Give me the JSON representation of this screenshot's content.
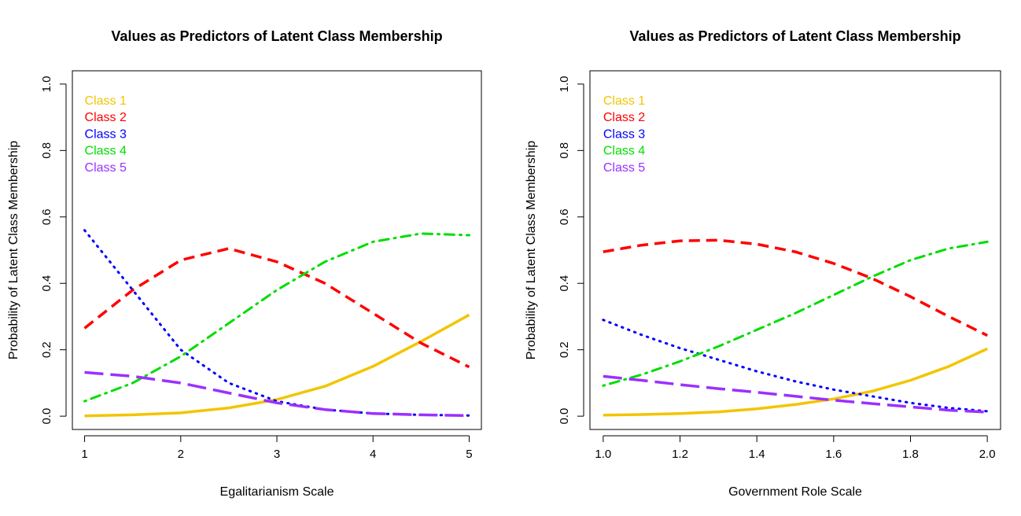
{
  "colors": {
    "class1": "#F2C500",
    "class2": "#FF0000",
    "class3": "#0000FF",
    "class4": "#00DD00",
    "class5": "#9B30FF"
  },
  "chart_data": [
    {
      "type": "line",
      "title": "Values as Predictors of Latent Class Membership",
      "xlabel": "Egalitarianism Scale",
      "ylabel": "Probability of Latent Class Membership",
      "xlim": [
        1,
        5
      ],
      "ylim": [
        0,
        1
      ],
      "xticks": [
        "1",
        "2",
        "3",
        "4",
        "5"
      ],
      "yticks": [
        "0.0",
        "0.2",
        "0.4",
        "0.6",
        "0.8",
        "1.0"
      ],
      "grid": false,
      "legend_position": "top-left",
      "x": [
        1.0,
        1.5,
        2.0,
        2.5,
        3.0,
        3.5,
        4.0,
        4.5,
        5.0
      ],
      "series": [
        {
          "name": "Class 1",
          "color": "#F2C500",
          "style": "solid",
          "values": [
            0.001,
            0.004,
            0.01,
            0.025,
            0.05,
            0.09,
            0.15,
            0.225,
            0.305
          ]
        },
        {
          "name": "Class 2",
          "color": "#FF0000",
          "style": "dashed",
          "values": [
            0.265,
            0.38,
            0.47,
            0.505,
            0.465,
            0.4,
            0.31,
            0.22,
            0.148
          ]
        },
        {
          "name": "Class 3",
          "color": "#0000FF",
          "style": "dotted",
          "values": [
            0.56,
            0.38,
            0.2,
            0.1,
            0.045,
            0.02,
            0.008,
            0.004,
            0.002
          ]
        },
        {
          "name": "Class 4",
          "color": "#00DD00",
          "style": "dotdash",
          "values": [
            0.045,
            0.1,
            0.18,
            0.28,
            0.38,
            0.465,
            0.525,
            0.55,
            0.545
          ]
        },
        {
          "name": "Class 5",
          "color": "#9B30FF",
          "style": "longdash",
          "values": [
            0.132,
            0.12,
            0.1,
            0.07,
            0.04,
            0.02,
            0.008,
            0.004,
            0.002
          ]
        }
      ]
    },
    {
      "type": "line",
      "title": "Values as Predictors of Latent Class Membership",
      "xlabel": "Government Role Scale",
      "ylabel": "Probability of Latent Class Membership",
      "xlim": [
        1.0,
        2.0
      ],
      "ylim": [
        0,
        1
      ],
      "xticks": [
        "1.0",
        "1.2",
        "1.4",
        "1.6",
        "1.8",
        "2.0"
      ],
      "yticks": [
        "0.0",
        "0.2",
        "0.4",
        "0.6",
        "0.8",
        "1.0"
      ],
      "grid": false,
      "legend_position": "top-left",
      "x": [
        1.0,
        1.1,
        1.2,
        1.3,
        1.4,
        1.5,
        1.6,
        1.7,
        1.8,
        1.9,
        2.0
      ],
      "series": [
        {
          "name": "Class 1",
          "color": "#F2C500",
          "style": "solid",
          "values": [
            0.003,
            0.005,
            0.008,
            0.013,
            0.022,
            0.035,
            0.052,
            0.075,
            0.108,
            0.15,
            0.203
          ]
        },
        {
          "name": "Class 2",
          "color": "#FF0000",
          "style": "dashed",
          "values": [
            0.495,
            0.515,
            0.528,
            0.53,
            0.518,
            0.495,
            0.46,
            0.415,
            0.36,
            0.3,
            0.243
          ]
        },
        {
          "name": "Class 3",
          "color": "#0000FF",
          "style": "dotted",
          "values": [
            0.29,
            0.245,
            0.205,
            0.17,
            0.135,
            0.105,
            0.08,
            0.06,
            0.04,
            0.025,
            0.015
          ]
        },
        {
          "name": "Class 4",
          "color": "#00DD00",
          "style": "dotdash",
          "values": [
            0.092,
            0.125,
            0.165,
            0.21,
            0.26,
            0.31,
            0.365,
            0.42,
            0.47,
            0.505,
            0.525
          ]
        },
        {
          "name": "Class 5",
          "color": "#9B30FF",
          "style": "longdash",
          "values": [
            0.12,
            0.108,
            0.095,
            0.083,
            0.072,
            0.06,
            0.048,
            0.038,
            0.028,
            0.018,
            0.012
          ]
        }
      ]
    }
  ]
}
